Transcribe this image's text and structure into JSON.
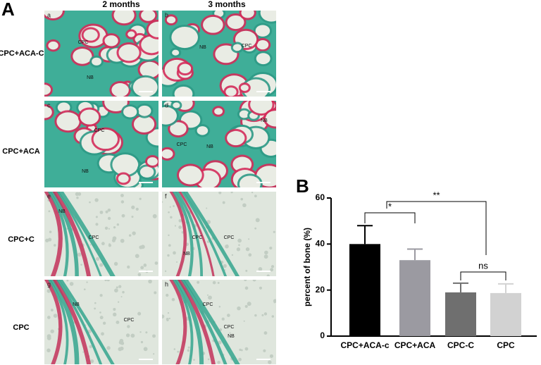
{
  "figure": {
    "panel_a_label": "A",
    "panel_b_label": "B",
    "column_headers": [
      "2 months",
      "3 months"
    ],
    "row_labels": [
      "CPC+ACA-C",
      "CPC+ACA",
      "CPC+C",
      "CPC"
    ],
    "panels": [
      {
        "letter": "a",
        "labels": [
          "CPC",
          "NB"
        ]
      },
      {
        "letter": "b",
        "labels": [
          "NB",
          "CPC"
        ]
      },
      {
        "letter": "c",
        "labels": [
          "CPC",
          "NB"
        ]
      },
      {
        "letter": "d",
        "labels": [
          "NB",
          "CPC",
          "NB"
        ]
      },
      {
        "letter": "e",
        "labels": [
          "NB",
          "CPC"
        ]
      },
      {
        "letter": "f",
        "labels": [
          "CPC",
          "CPC",
          "NB"
        ]
      },
      {
        "letter": "g",
        "labels": [
          "NB",
          "CPC"
        ]
      },
      {
        "letter": "h",
        "labels": [
          "CPC",
          "CPC",
          "NB"
        ]
      }
    ]
  },
  "chart_data": {
    "type": "bar",
    "y_label": "percent of bone (%)",
    "categories": [
      "CPC+ACA-c",
      "CPC+ACA",
      "CPC-C",
      "CPC"
    ],
    "values": [
      40,
      33,
      19,
      18.7
    ],
    "errors": [
      8,
      4.8,
      4,
      4
    ],
    "colors": [
      "#000000",
      "#9b9aa1",
      "#6f6f6f",
      "#d2d2d2"
    ],
    "ylim": [
      0,
      60
    ],
    "yticks": [
      0,
      20,
      40,
      60
    ],
    "annotations": [
      "*",
      "**",
      "ns"
    ]
  }
}
